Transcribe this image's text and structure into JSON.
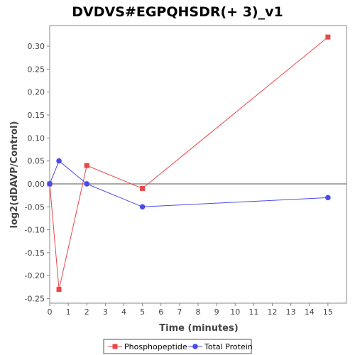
{
  "chart_data": {
    "type": "line",
    "title": "DVDVS#EGPQHSDR(+ 3)_v1",
    "xlabel": "Time (minutes)",
    "ylabel": "log2(dDAVP/Control)",
    "xlim": [
      0,
      16
    ],
    "ylim": [
      -0.26,
      0.345
    ],
    "x_ticks": [
      0,
      1,
      2,
      3,
      4,
      5,
      6,
      7,
      8,
      9,
      10,
      11,
      12,
      13,
      14,
      15
    ],
    "y_ticks": [
      -0.25,
      -0.2,
      -0.15,
      -0.1,
      -0.05,
      0.0,
      0.05,
      0.1,
      0.15,
      0.2,
      0.25,
      0.3
    ],
    "y_tick_labels": [
      "-0.25",
      "-0.20",
      "-0.15",
      "-0.10",
      "-0.05",
      "0.00",
      "0.05",
      "0.10",
      "0.15",
      "0.20",
      "0.25",
      "0.30"
    ],
    "zero_line": true,
    "grid": false,
    "legend_position": "bottom",
    "series": [
      {
        "name": "Phosphopeptide",
        "color": "#e8474a",
        "marker": "square",
        "x": [
          0,
          0.5,
          2,
          5,
          15
        ],
        "y": [
          0.0,
          -0.23,
          0.04,
          -0.01,
          0.32
        ]
      },
      {
        "name": "Total Protein",
        "color": "#4b4be8",
        "marker": "circle",
        "x": [
          0,
          0.5,
          2,
          5,
          15
        ],
        "y": [
          0.0,
          0.05,
          0.0,
          -0.05,
          -0.03
        ]
      }
    ]
  }
}
